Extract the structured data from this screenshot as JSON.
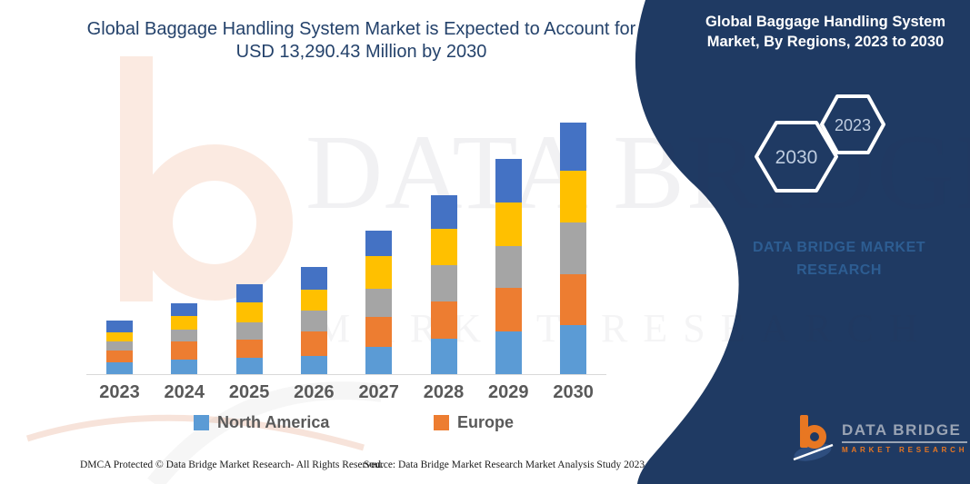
{
  "page": {
    "title_line1": "Global Baggage Handling System Market is Expected to Account for",
    "title_line2": "USD 13,290.43 Million by 2030"
  },
  "panel": {
    "title_line1": "Global Baggage Handling System",
    "title_line2": "Market, By Regions, 2023 to 2030",
    "badge_back_year": "2030",
    "badge_front_year": "2023",
    "brand_text": "DATA BRIDGE MARKET RESEARCH",
    "background_color": "#1F3A63"
  },
  "logo": {
    "name": "DATA BRIDGE",
    "tagline": "MARKET RESEARCH"
  },
  "watermark": {
    "line1": "DATA BRIDGE",
    "line2": "MARKET RESEARCH"
  },
  "footer": {
    "left": "DMCA Protected © Data Bridge Market Research-  All Rights Reserved.",
    "right": "Source: Data Bridge Market Research  Market Analysis Study 2023"
  },
  "chart_data": {
    "type": "bar",
    "stacked": true,
    "title": "Global Baggage Handling System Market is Expected to Account for USD 13,290.43 Million by 2030",
    "categories": [
      "2023",
      "2024",
      "2025",
      "2026",
      "2027",
      "2028",
      "2029",
      "2030"
    ],
    "series": [
      {
        "name": "North America",
        "color": "#5B9BD5",
        "values": [
          13,
          16,
          18,
          20,
          30,
          39,
          47,
          54
        ]
      },
      {
        "name": "Europe",
        "color": "#ED7D31",
        "values": [
          13,
          20,
          20,
          27,
          33,
          41,
          48,
          56
        ]
      },
      {
        "name": "",
        "color": "#A5A5A5",
        "values": [
          10,
          13,
          19,
          23,
          31,
          40,
          46,
          57
        ]
      },
      {
        "name": "",
        "color": "#FFC000",
        "values": [
          10,
          15,
          22,
          23,
          36,
          40,
          48,
          57
        ]
      },
      {
        "name": "",
        "color": "#4472C4",
        "values": [
          13,
          14,
          20,
          25,
          28,
          37,
          48,
          53
        ]
      }
    ],
    "legend": [
      {
        "label": "North America",
        "color": "#5B9BD5"
      },
      {
        "label": "Europe",
        "color": "#ED7D31"
      }
    ],
    "legend_position": "bottom",
    "grid": false,
    "y_axis_visible": false,
    "baseline_color": "#D9D9D9",
    "units": "relative stacked heights (no value axis shown in figure)"
  }
}
